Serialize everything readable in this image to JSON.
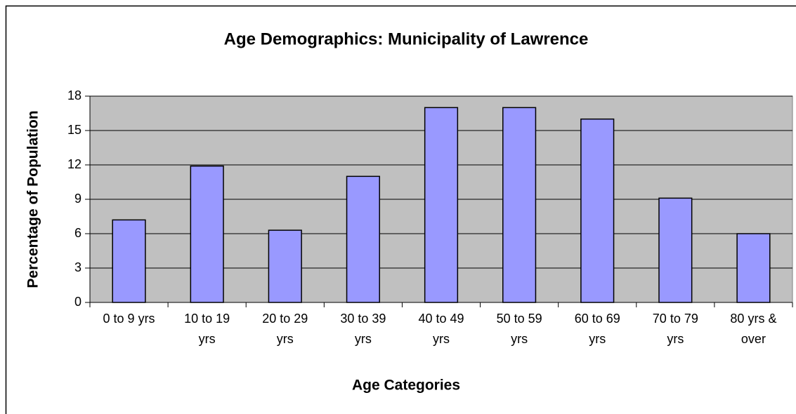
{
  "chart_data": {
    "type": "bar",
    "title": "Age Demographics: Municipality of Lawrence",
    "x_label": "Age Categories",
    "y_label": "Percentage of Population",
    "categories": [
      "0 to 9 yrs",
      "10 to 19 yrs",
      "20 to 29 yrs",
      "30 to 39 yrs",
      "40 to 49 yrs",
      "50 to 59 yrs",
      "60 to 69 yrs",
      "70 to 79 yrs",
      "80 yrs & over"
    ],
    "values": [
      7.2,
      11.9,
      6.3,
      11,
      17,
      17,
      16,
      9.1,
      6
    ],
    "color": "#9999ff",
    "ylim": [
      0,
      18
    ],
    "yticks": [
      0,
      3,
      6,
      9,
      12,
      15,
      18
    ],
    "grid": true
  }
}
